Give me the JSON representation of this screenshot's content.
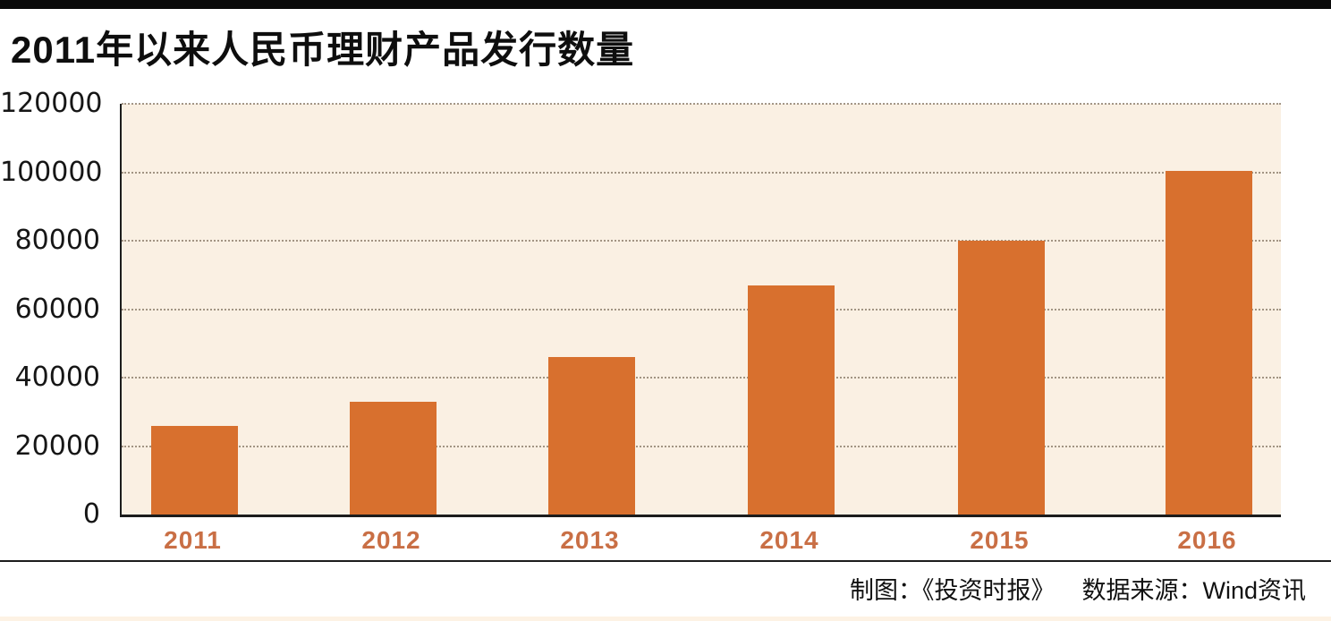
{
  "page": {
    "title": "2011年以来人民币理财产品发行数量",
    "footer": {
      "credit": "制图：《投资时报》",
      "source": "数据来源：Wind资讯"
    }
  },
  "chart_data": {
    "type": "bar",
    "title": "2011年以来人民币理财产品发行数量",
    "categories": [
      "2011",
      "2012",
      "2013",
      "2014",
      "2015",
      "2016"
    ],
    "values": [
      26000,
      33000,
      46000,
      67000,
      80000,
      100500
    ],
    "xlabel": "",
    "ylabel": "",
    "ylim": [
      0,
      120000
    ],
    "yticks": [
      0,
      20000,
      40000,
      60000,
      80000,
      100000,
      120000
    ],
    "grid": "horizontal-dotted",
    "legend": "none",
    "colors": {
      "bar": "#d8702e",
      "plot_background": "#faf0e3",
      "axis_line": "#1c1c1c",
      "gridline": "#857663",
      "year_label": "#c96f45",
      "title_text": "#0e0e0e"
    }
  }
}
